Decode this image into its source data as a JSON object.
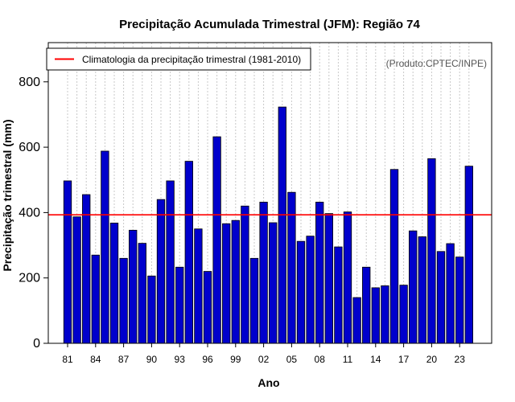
{
  "chart_data": {
    "type": "bar",
    "title": "Precipitação Acumulada Trimestral (JFM): Região 74",
    "xlabel": "Ano",
    "ylabel": "Precipitação trimestral (mm)",
    "credit": "(Produto:CPTEC/INPE)",
    "ylim": [
      0,
      920
    ],
    "yticks": [
      0,
      200,
      400,
      600,
      800
    ],
    "years": [
      "81",
      "82",
      "83",
      "84",
      "85",
      "86",
      "87",
      "88",
      "89",
      "90",
      "91",
      "92",
      "93",
      "94",
      "95",
      "96",
      "97",
      "98",
      "99",
      "00",
      "01",
      "02",
      "03",
      "04",
      "05",
      "06",
      "07",
      "08",
      "09",
      "10",
      "11",
      "12",
      "13",
      "14",
      "15",
      "16",
      "17",
      "18",
      "19",
      "20",
      "21",
      "22",
      "23",
      "24"
    ],
    "xtick_labels": [
      "81",
      "84",
      "87",
      "90",
      "93",
      "96",
      "99",
      "02",
      "05",
      "08",
      "11",
      "14",
      "17",
      "20",
      "23"
    ],
    "values": [
      497,
      387,
      455,
      270,
      588,
      368,
      260,
      346,
      306,
      206,
      440,
      497,
      233,
      557,
      350,
      220,
      632,
      366,
      376,
      420,
      260,
      432,
      369,
      723,
      462,
      312,
      328,
      432,
      397,
      295,
      402,
      140,
      233,
      170,
      176,
      532,
      178,
      344,
      326,
      565,
      281,
      305,
      264,
      542
    ],
    "climatology": {
      "label": "Climatologia da precipitação trimestral (1981-2010)",
      "value": 393,
      "color": "#ff0000"
    },
    "bar_color": "#0000cc",
    "grid": "vertical-dotted",
    "legend_position": "top-left"
  }
}
